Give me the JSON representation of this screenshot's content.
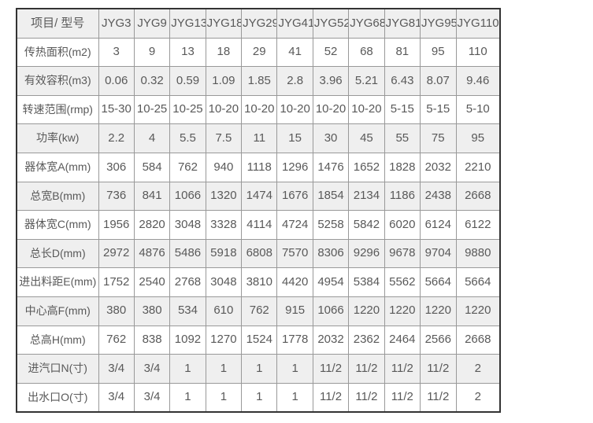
{
  "colors": {
    "outer_border": "#333333",
    "inner_border": "#999999",
    "header_background": "#efefef",
    "stripe_background": "#efefef",
    "text": "#595959",
    "page_background": "#ffffff"
  },
  "chart_data": {
    "type": "table",
    "corner_label": "项目/ 型号",
    "columns": [
      "JYG3",
      "JYG9",
      "JYG13",
      "JYG18",
      "JYG29",
      "JYG41",
      "JYG52",
      "JYG68",
      "JYG81",
      "JYG95",
      "JYG110"
    ],
    "rows": [
      {
        "label": "传热面积(m2)",
        "values": [
          "3",
          "9",
          "13",
          "18",
          "29",
          "41",
          "52",
          "68",
          "81",
          "95",
          "110"
        ]
      },
      {
        "label": "有效容积(m3)",
        "values": [
          "0.06",
          "0.32",
          "0.59",
          "1.09",
          "1.85",
          "2.8",
          "3.96",
          "5.21",
          "6.43",
          "8.07",
          "9.46"
        ]
      },
      {
        "label": "转速范围(rmp)",
        "values": [
          "15-30",
          "10-25",
          "10-25",
          "10-20",
          "10-20",
          "10-20",
          "10-20",
          "10-20",
          "5-15",
          "5-15",
          "5-10"
        ]
      },
      {
        "label": "功率(kw)",
        "values": [
          "2.2",
          "4",
          "5.5",
          "7.5",
          "11",
          "15",
          "30",
          "45",
          "55",
          "75",
          "95"
        ]
      },
      {
        "label": "器体宽A(mm)",
        "values": [
          "306",
          "584",
          "762",
          "940",
          "1118",
          "1296",
          "1476",
          "1652",
          "1828",
          "2032",
          "2210"
        ]
      },
      {
        "label": "总宽B(mm)",
        "values": [
          "736",
          "841",
          "1066",
          "1320",
          "1474",
          "1676",
          "1854",
          "2134",
          "1186",
          "2438",
          "2668"
        ]
      },
      {
        "label": "器体宽C(mm)",
        "values": [
          "1956",
          "2820",
          "3048",
          "3328",
          "4114",
          "4724",
          "5258",
          "5842",
          "6020",
          "6124",
          "6122"
        ]
      },
      {
        "label": "总长D(mm)",
        "values": [
          "2972",
          "4876",
          "5486",
          "5918",
          "6808",
          "7570",
          "8306",
          "9296",
          "9678",
          "9704",
          "9880"
        ]
      },
      {
        "label": "进出料距E(mm)",
        "values": [
          "1752",
          "2540",
          "2768",
          "3048",
          "3810",
          "4420",
          "4954",
          "5384",
          "5562",
          "5664",
          "5664"
        ]
      },
      {
        "label": "中心高F(mm)",
        "values": [
          "380",
          "380",
          "534",
          "610",
          "762",
          "915",
          "1066",
          "1220",
          "1220",
          "1220",
          "1220"
        ]
      },
      {
        "label": "总高H(mm)",
        "values": [
          "762",
          "838",
          "1092",
          "1270",
          "1524",
          "1778",
          "2032",
          "2362",
          "2464",
          "2566",
          "2668"
        ]
      },
      {
        "label": "进汽口N(寸)",
        "values": [
          "3/4",
          "3/4",
          "1",
          "1",
          "1",
          "1",
          "11/2",
          "11/2",
          "11/2",
          "11/2",
          "2"
        ]
      },
      {
        "label": "出水口O(寸)",
        "values": [
          "3/4",
          "3/4",
          "1",
          "1",
          "1",
          "1",
          "11/2",
          "11/2",
          "11/2",
          "11/2",
          "2"
        ]
      }
    ]
  }
}
